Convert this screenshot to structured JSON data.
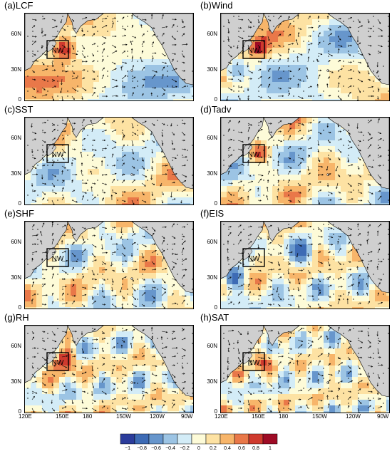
{
  "panels": [
    {
      "label": "(a)LCF"
    },
    {
      "label": "(b)Wind"
    },
    {
      "label": "(c)SST"
    },
    {
      "label": "(d)Tadv"
    },
    {
      "label": "(e)SHF"
    },
    {
      "label": "(f)EIS"
    },
    {
      "label": "(g)RH"
    },
    {
      "label": "(h)SAT"
    }
  ],
  "lat_ticks": [
    "60N",
    "30N",
    "0"
  ],
  "lon_ticks": [
    "120E",
    "150E",
    "180",
    "150W",
    "120W",
    "90W"
  ],
  "box_label": "NW",
  "colorbar": {
    "ticks": [
      "−1",
      "−0.8",
      "−0.6",
      "−0.4",
      "−0.2",
      "0",
      "0.2",
      "0.4",
      "0.6",
      "0.8",
      "1"
    ],
    "colors": [
      "#2b3c9b",
      "#3d6bb5",
      "#6796cc",
      "#9cc4e4",
      "#d3ecf7",
      "#fdfbd8",
      "#fde2a3",
      "#f7b56a",
      "#e97849",
      "#cf3a2e",
      "#9e0b25"
    ]
  },
  "land_color": "#cfcfcf"
}
